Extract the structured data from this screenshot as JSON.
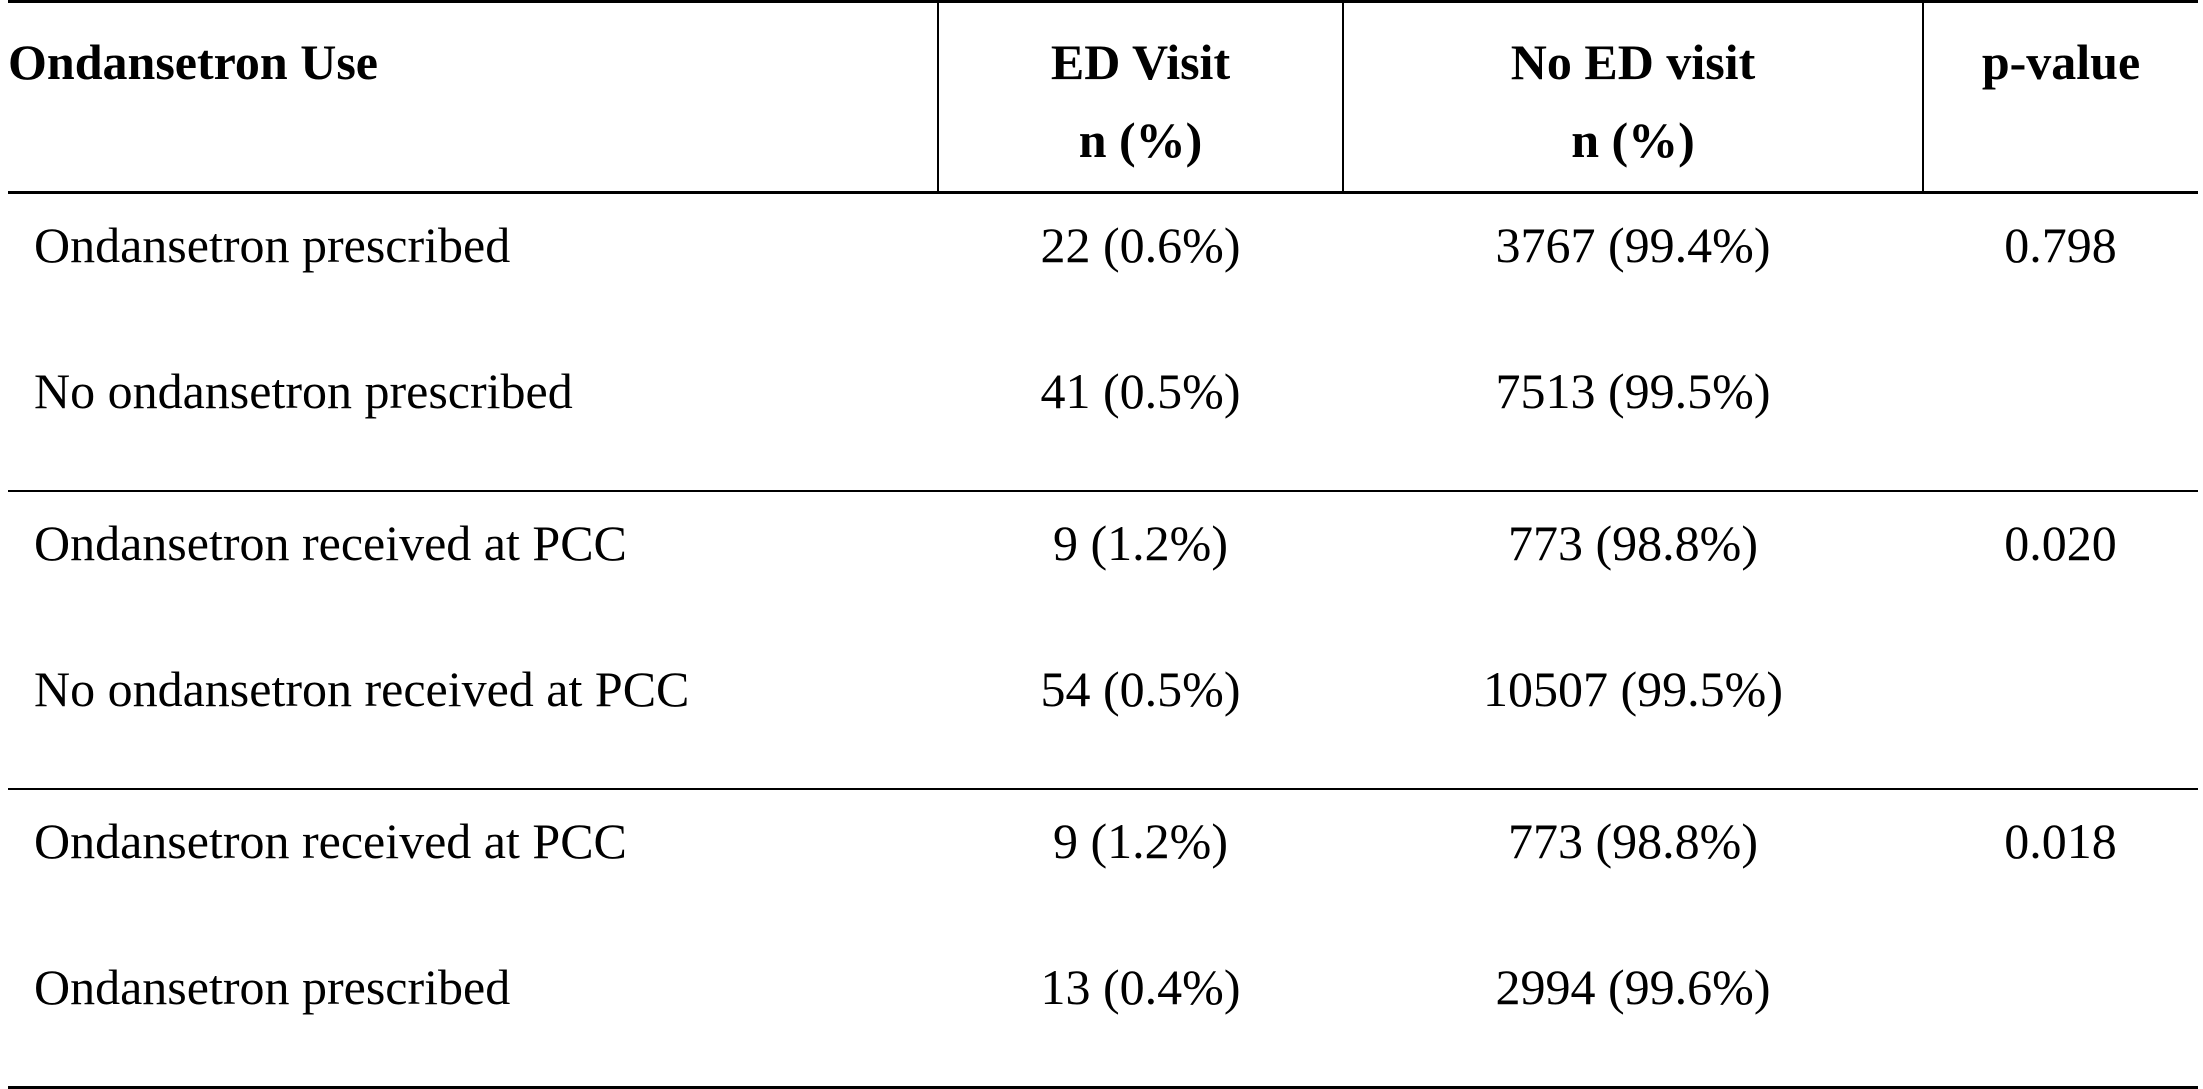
{
  "header": {
    "col1": "Ondansetron Use",
    "col2_line1": "ED Visit",
    "col2_line2": "n (%)",
    "col3_line1": "No ED visit",
    "col3_line2": "n (%)",
    "col4": "p-value"
  },
  "groups": [
    {
      "rows": [
        {
          "label": "Ondansetron prescribed",
          "ed": "22 (0.6%)",
          "no_ed": "3767 (99.4%)",
          "p": "0.798"
        },
        {
          "label": "No ondansetron prescribed",
          "ed": "41 (0.5%)",
          "no_ed": "7513 (99.5%)",
          "p": ""
        }
      ]
    },
    {
      "rows": [
        {
          "label": "Ondansetron received at PCC",
          "ed": "9 (1.2%)",
          "no_ed": "773 (98.8%)",
          "p": "0.020"
        },
        {
          "label": "No ondansetron received at PCC",
          "ed": "54 (0.5%)",
          "no_ed": "10507 (99.5%)",
          "p": ""
        }
      ]
    },
    {
      "rows": [
        {
          "label": "Ondansetron received at PCC",
          "ed": "9 (1.2%)",
          "no_ed": "773 (98.8%)",
          "p": "0.018"
        },
        {
          "label": "Ondansetron prescribed",
          "ed": "13 (0.4%)",
          "no_ed": "2994 (99.6%)",
          "p": ""
        }
      ]
    }
  ]
}
